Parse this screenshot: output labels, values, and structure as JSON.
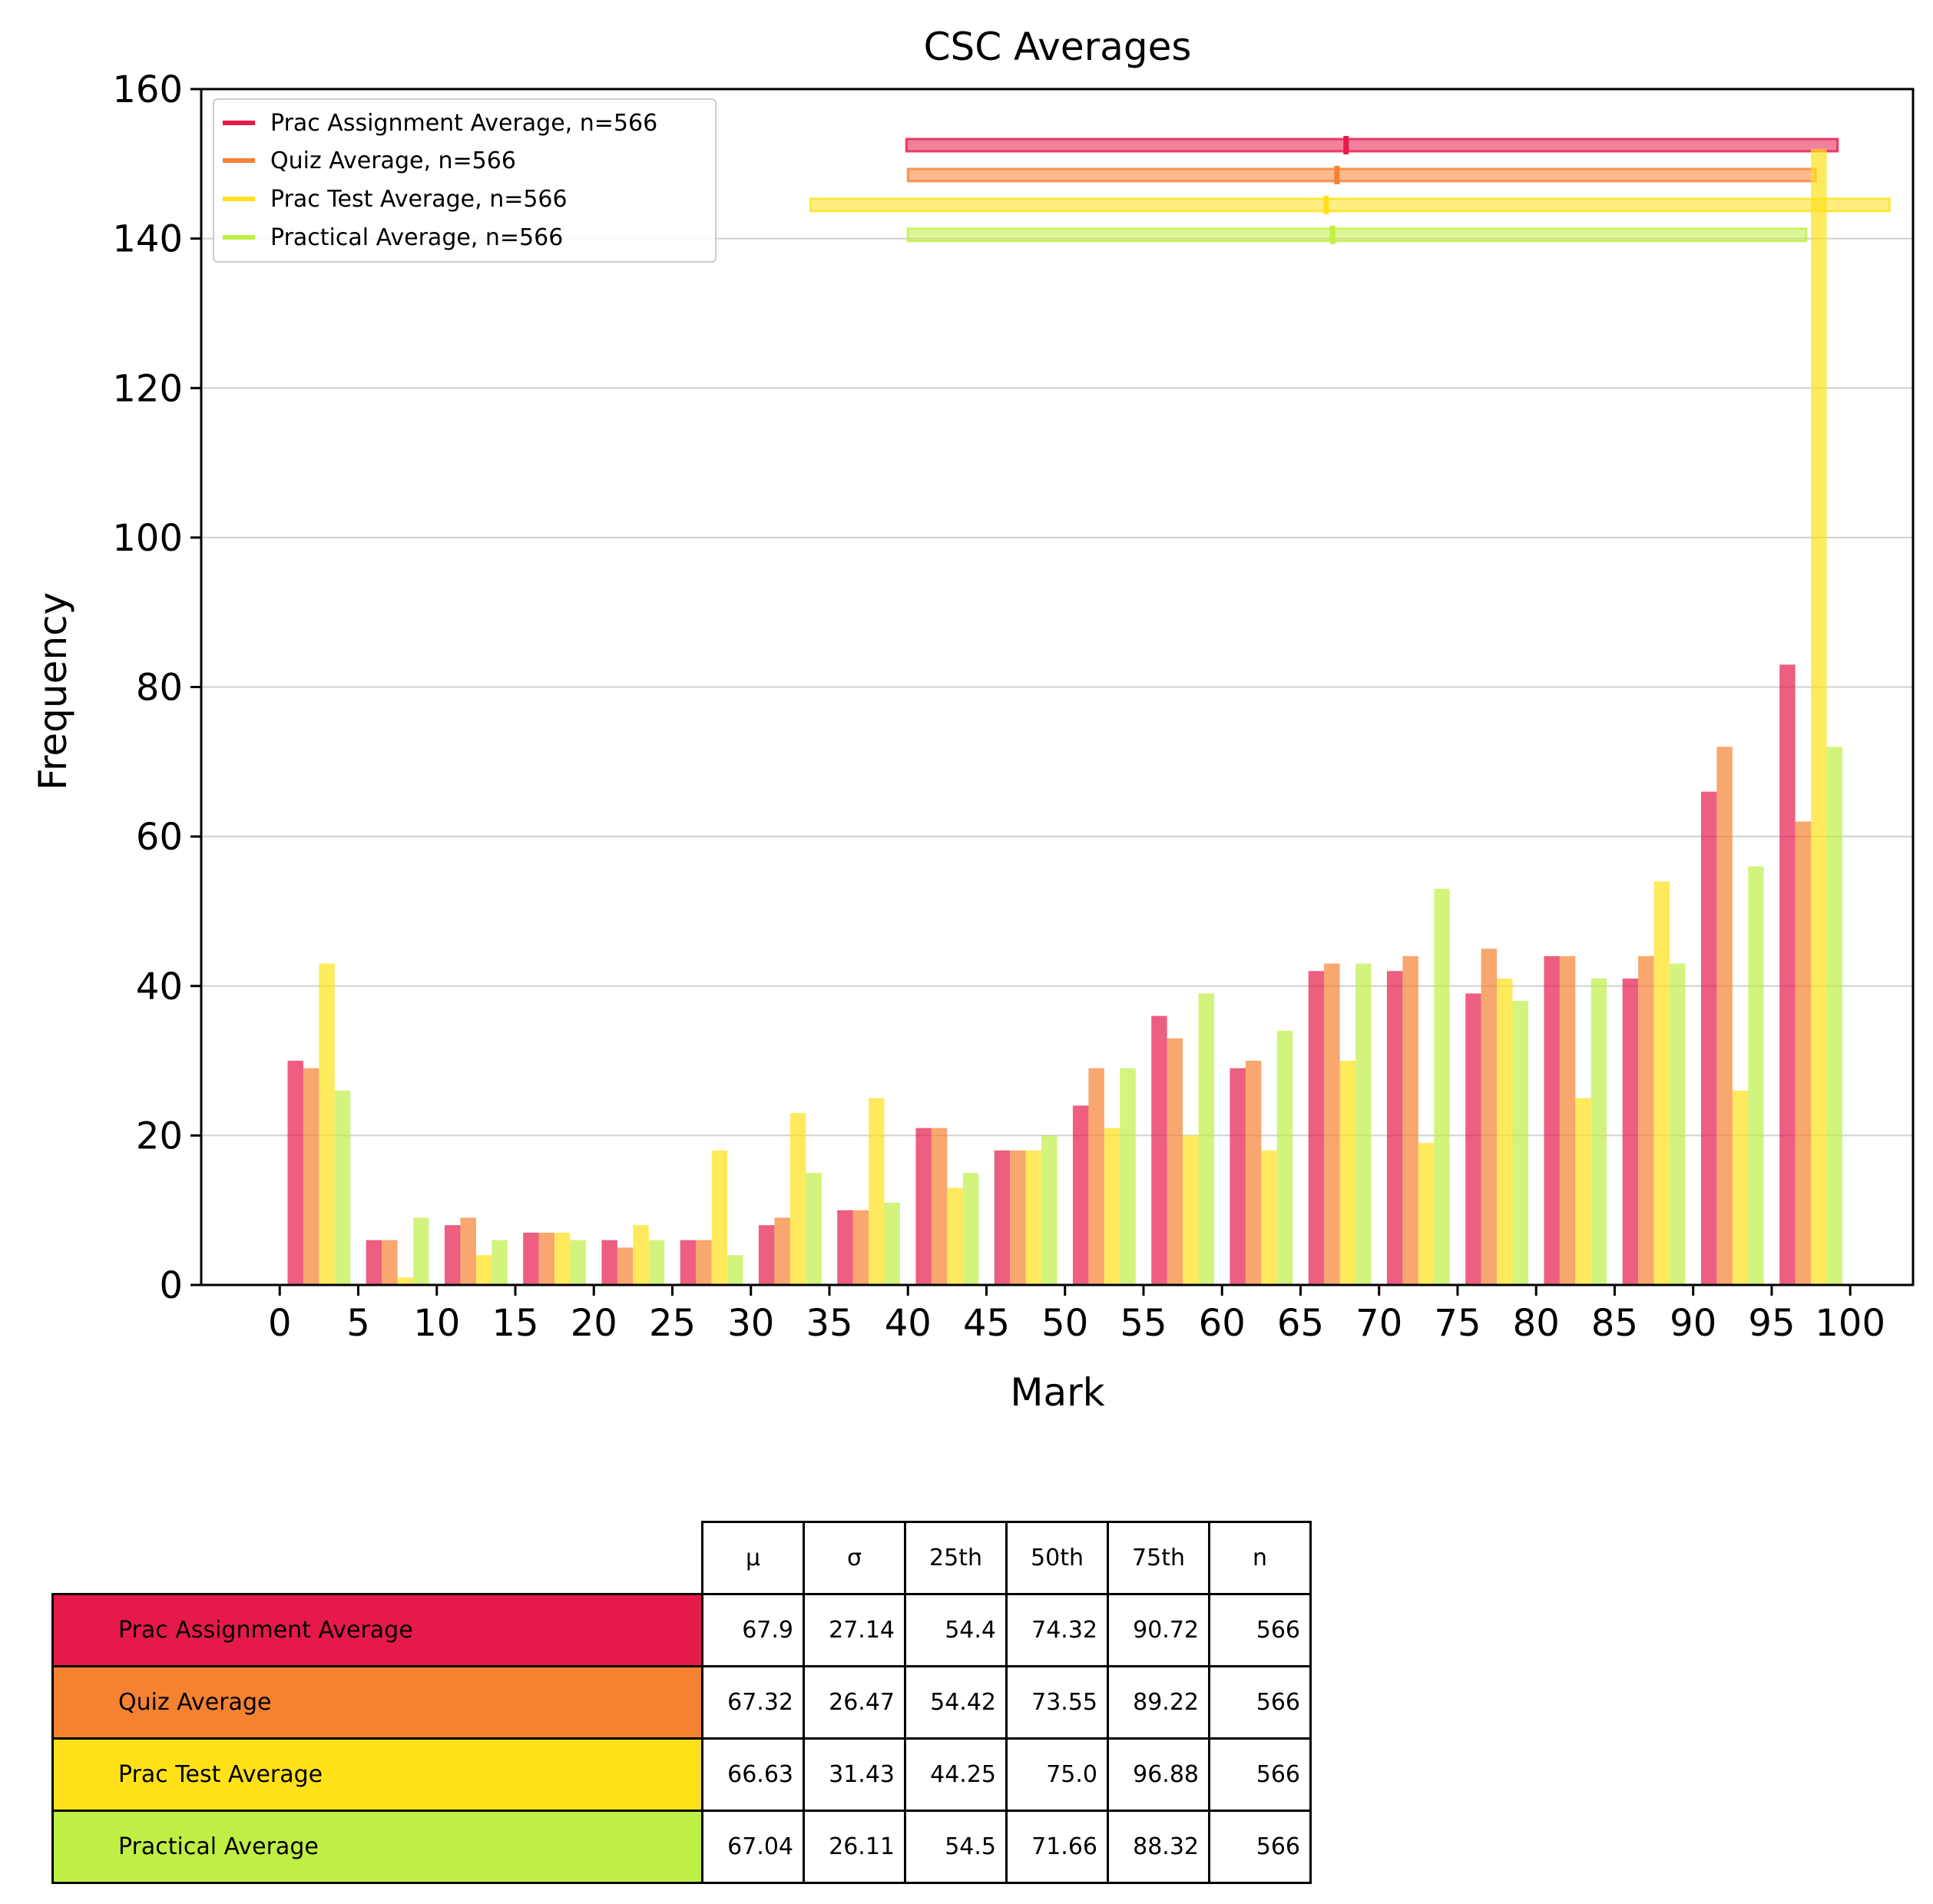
{
  "colors": {
    "prac_assignment": "#E6194B",
    "quiz": "#F58231",
    "prac_test": "#FFE119",
    "practical": "#BFEF45"
  },
  "chart_data": {
    "type": "bar",
    "title": "CSC Averages",
    "xlabel": "Mark",
    "ylabel": "Frequency",
    "xlim": [
      -5,
      104
    ],
    "ylim": [
      0,
      160
    ],
    "x_ticks": [
      0,
      5,
      10,
      15,
      20,
      25,
      30,
      35,
      40,
      45,
      50,
      55,
      60,
      65,
      70,
      75,
      80,
      85,
      90,
      95,
      100
    ],
    "y_ticks": [
      0,
      20,
      40,
      60,
      80,
      100,
      120,
      140,
      160
    ],
    "grid": "horizontal",
    "legend_position": "top-left",
    "bins": [
      0,
      5,
      10,
      15,
      20,
      25,
      30,
      35,
      40,
      45,
      50,
      55,
      60,
      65,
      70,
      75,
      80,
      85,
      90,
      95
    ],
    "bin_width": 5,
    "series": [
      {
        "name": "Prac Assignment Average, n=566",
        "color_key": "prac_assignment",
        "values": [
          30,
          6,
          8,
          7,
          6,
          6,
          8,
          10,
          21,
          18,
          24,
          36,
          29,
          42,
          42,
          39,
          44,
          41,
          66,
          83
        ]
      },
      {
        "name": "Quiz Average, n=566",
        "color_key": "quiz",
        "values": [
          29,
          6,
          9,
          7,
          5,
          6,
          9,
          10,
          21,
          18,
          29,
          33,
          30,
          43,
          44,
          45,
          44,
          44,
          72,
          62
        ]
      },
      {
        "name": "Prac Test Average, n=566",
        "color_key": "prac_test",
        "values": [
          43,
          1,
          4,
          7,
          8,
          18,
          23,
          25,
          13,
          18,
          21,
          20,
          18,
          30,
          19,
          41,
          25,
          54,
          26,
          152
        ]
      },
      {
        "name": "Practical Average, n=566",
        "color_key": "practical",
        "values": [
          26,
          9,
          6,
          6,
          6,
          4,
          15,
          11,
          15,
          20,
          29,
          39,
          34,
          43,
          53,
          38,
          41,
          43,
          56,
          72
        ]
      }
    ],
    "range_bars": [
      {
        "color_key": "prac_assignment",
        "y": 152.5,
        "min": 39.9,
        "max": 99.2,
        "mean": 67.9
      },
      {
        "color_key": "quiz",
        "y": 148.5,
        "min": 40.0,
        "max": 97.8,
        "mean": 67.32
      },
      {
        "color_key": "prac_test",
        "y": 144.5,
        "min": 33.8,
        "max": 102.5,
        "mean": 66.63
      },
      {
        "color_key": "practical",
        "y": 140.5,
        "min": 40.0,
        "max": 97.2,
        "mean": 67.04
      }
    ]
  },
  "table": {
    "headers": [
      "μ",
      "σ",
      "25th",
      "50th",
      "75th",
      "n"
    ],
    "rows": [
      {
        "label": "Prac Assignment Average",
        "color_key": "prac_assignment",
        "values": [
          "67.9",
          "27.14",
          "54.4",
          "74.32",
          "90.72",
          "566"
        ]
      },
      {
        "label": "Quiz Average",
        "color_key": "quiz",
        "values": [
          "67.32",
          "26.47",
          "54.42",
          "73.55",
          "89.22",
          "566"
        ]
      },
      {
        "label": "Prac Test Average",
        "color_key": "prac_test",
        "values": [
          "66.63",
          "31.43",
          "44.25",
          "75.0",
          "96.88",
          "566"
        ]
      },
      {
        "label": "Practical Average",
        "color_key": "practical",
        "values": [
          "67.04",
          "26.11",
          "54.5",
          "71.66",
          "88.32",
          "566"
        ]
      }
    ]
  }
}
